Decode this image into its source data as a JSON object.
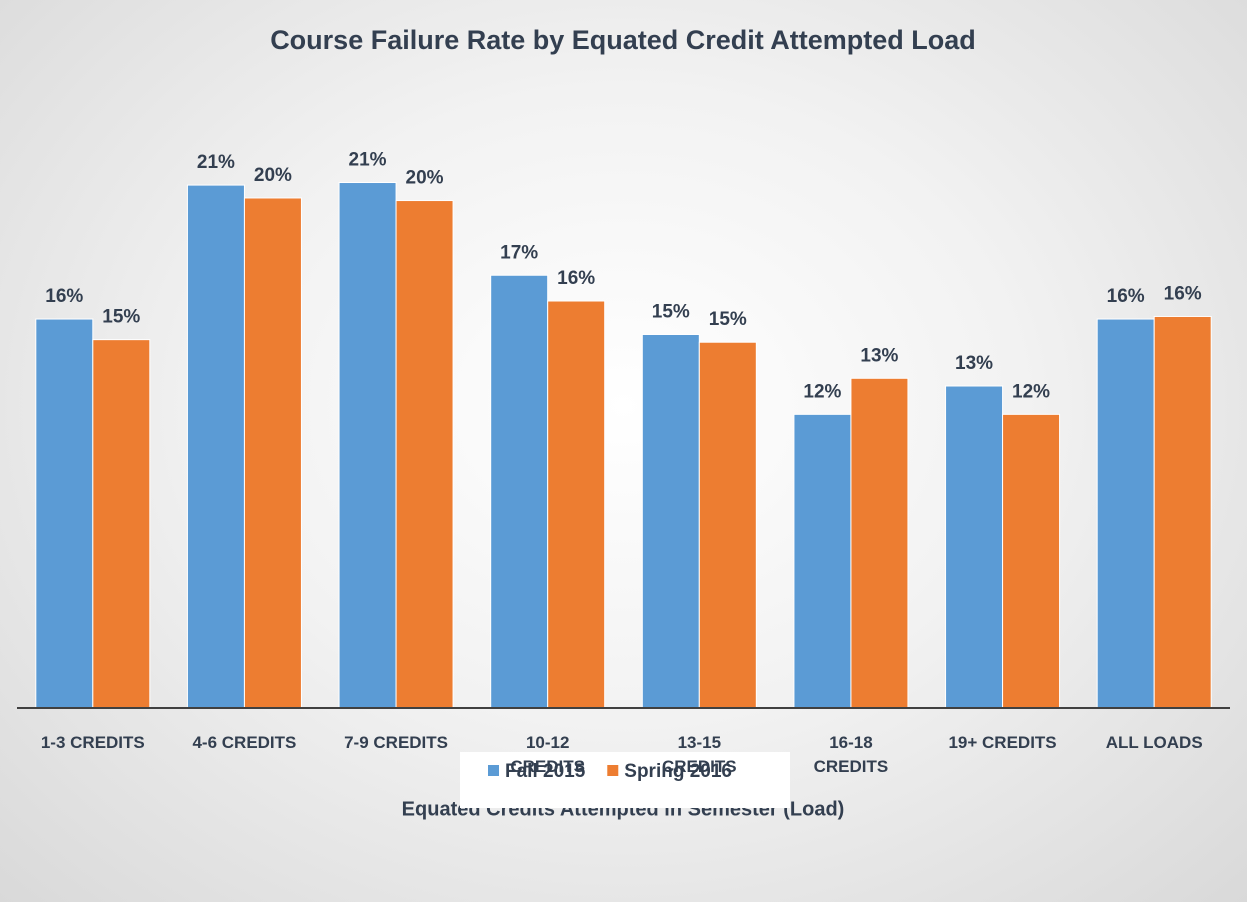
{
  "chart_data": {
    "type": "bar",
    "title": "Course Failure Rate by Equated Credit Attempted Load",
    "x_label": "Equated Credits Attempted in Semester (Load)",
    "categories": [
      "1-3 CREDITS",
      "4-6 CREDITS",
      "7-9 CREDITS",
      "10-12 CREDITS",
      "13-15 CREDITS",
      "16-18 CREDITS",
      "19+ CREDITS",
      "ALL LOADS"
    ],
    "series": [
      {
        "name": "Fall 2015",
        "color": "#5b9bd5",
        "values": [
          15.7,
          20.9,
          21.0,
          17.4,
          15.1,
          12.0,
          13.1,
          15.7
        ],
        "value_labels": [
          "16%",
          "21%",
          "21%",
          "17%",
          "15%",
          "12%",
          "13%",
          "16%"
        ]
      },
      {
        "name": "Spring 2016",
        "color": "#ed7d31",
        "values": [
          14.9,
          20.4,
          20.3,
          16.4,
          14.8,
          13.4,
          12.0,
          15.8
        ],
        "value_labels": [
          "15%",
          "20%",
          "20%",
          "16%",
          "15%",
          "13%",
          "12%",
          "16%"
        ]
      }
    ],
    "ylim": [
      0.6,
      23
    ],
    "legend": "bottom"
  }
}
